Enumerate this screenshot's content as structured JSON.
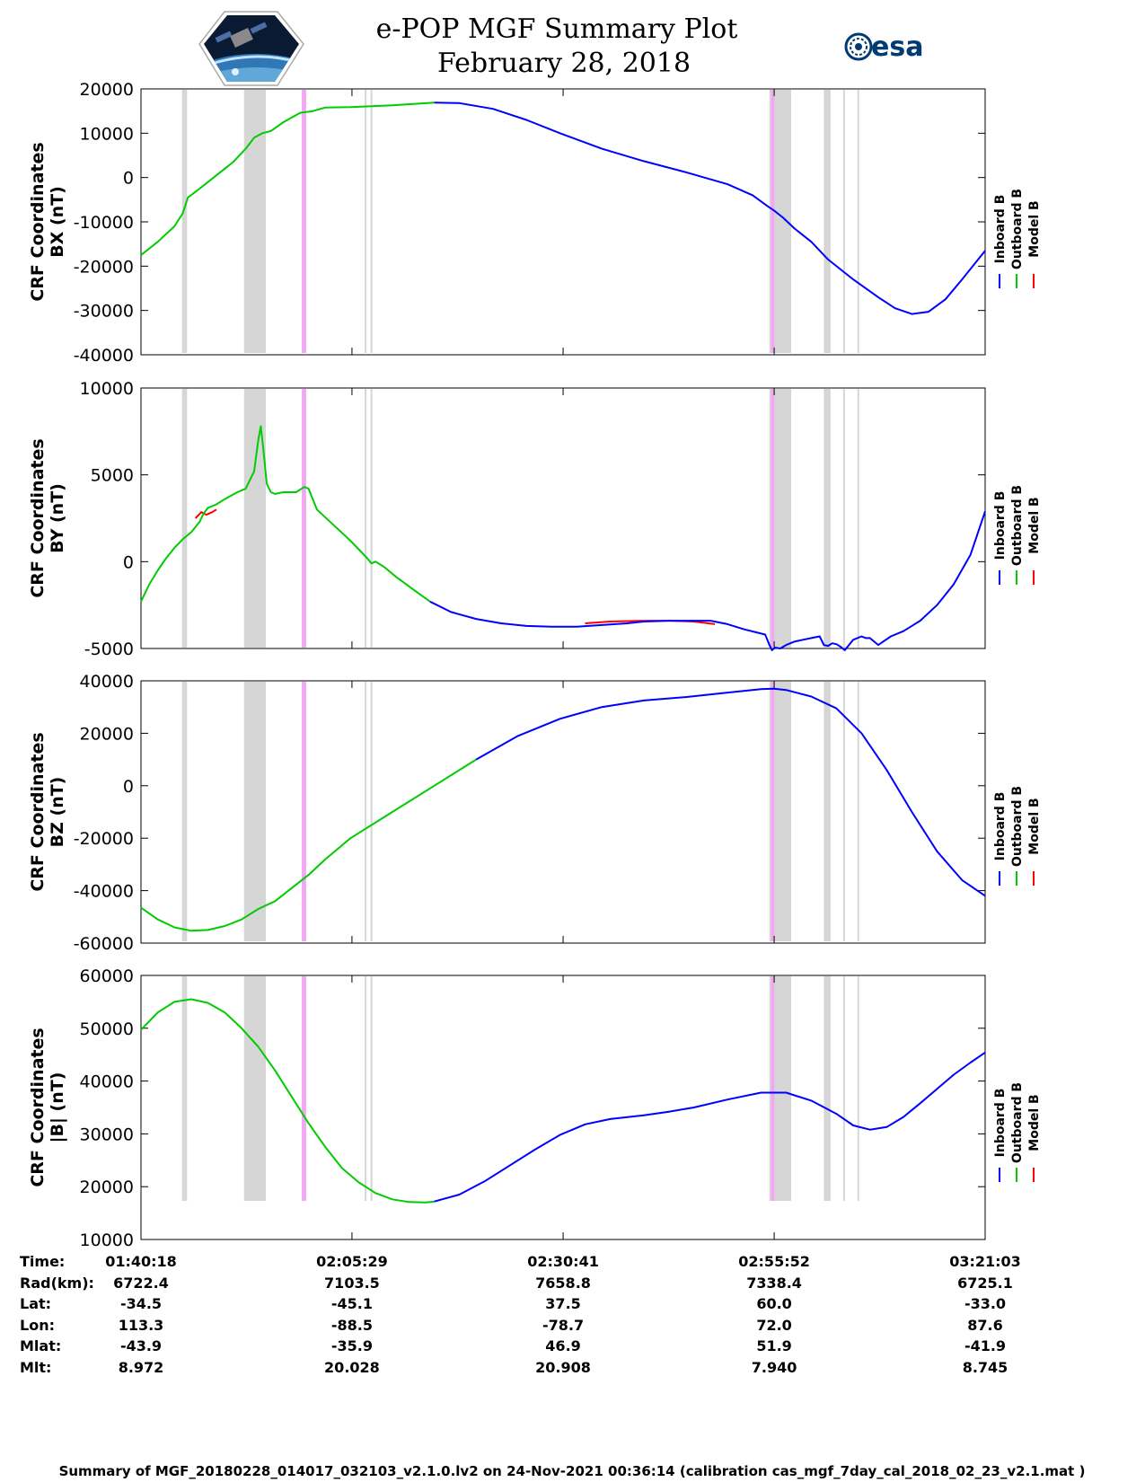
{
  "header": {
    "title": "e-POP MGF Summary Plot",
    "date": "February 28, 2018",
    "esa_text": "esa"
  },
  "legend": {
    "labels": [
      "Inboard B",
      "Outboard B",
      "Model B"
    ],
    "colors": [
      "#0000ff",
      "#00cc00",
      "#ff0000"
    ]
  },
  "ephemeris": {
    "row_labels": [
      "Time:",
      "Rad(km):",
      "Lat:",
      "Lon:",
      "Mlat:",
      "Mlt:"
    ],
    "columns": [
      {
        "Time": "01:40:18",
        "Rad": "6722.4",
        "Lat": "-34.5",
        "Lon": "113.3",
        "Mlat": "-43.9",
        "Mlt": "8.972"
      },
      {
        "Time": "02:05:29",
        "Rad": "7103.5",
        "Lat": "-45.1",
        "Lon": "-88.5",
        "Mlat": "-35.9",
        "Mlt": "20.028"
      },
      {
        "Time": "02:30:41",
        "Rad": "7658.8",
        "Lat": "37.5",
        "Lon": "-78.7",
        "Mlat": "46.9",
        "Mlt": "20.908"
      },
      {
        "Time": "02:55:52",
        "Rad": "7338.4",
        "Lat": "60.0",
        "Lon": "72.0",
        "Mlat": "51.9",
        "Mlt": "7.940"
      },
      {
        "Time": "03:21:03",
        "Rad": "6725.1",
        "Lat": "-33.0",
        "Lon": "87.6",
        "Mlat": "-41.9",
        "Mlt": "8.745"
      }
    ]
  },
  "footer": "Summary of MGF_20180228_014017_032103_v2.1.0.lv2 on 24-Nov-2021 00:36:14 (calibration cas_mgf_7day_cal_2018_02_23_v2.1.mat )",
  "chart_data": {
    "type": "line",
    "x_unit": "minutes since 01:40:18",
    "xlim": [
      0,
      100.75
    ],
    "x_ticks": [
      0,
      25.18,
      50.38,
      75.57,
      100.75
    ],
    "x_tick_labels": [
      "01:40:18",
      "02:05:29",
      "02:30:41",
      "02:55:52",
      "03:21:03"
    ],
    "gray_bands": [
      [
        4.9,
        5.5
      ],
      [
        12.3,
        14.9
      ],
      [
        19.2,
        19.7
      ],
      [
        26.7,
        26.9
      ],
      [
        27.4,
        27.6
      ],
      [
        75.0,
        77.6
      ],
      [
        81.5,
        82.3
      ],
      [
        83.8,
        84.0
      ],
      [
        85.5,
        85.7
      ]
    ],
    "violet_bands": [
      [
        19.2,
        19.7
      ],
      [
        75.2,
        75.6
      ]
    ],
    "panels": [
      {
        "ylabel": [
          "CRF Coordinates",
          "BX (nT)"
        ],
        "ylim": [
          -40000,
          20000
        ],
        "yticks": [
          -40000,
          -30000,
          -20000,
          -10000,
          0,
          10000,
          20000
        ],
        "series": [
          {
            "name": "Outboard B",
            "color": "#00cc00",
            "x": [
              0,
              2,
              4,
              5,
              5.6,
              7,
              9,
              11,
              12.5,
              13.5,
              14.5,
              15.5,
              17,
              19,
              20.5,
              22,
              25,
              30,
              35
            ],
            "y": [
              -17500,
              -14500,
              -11000,
              -8000,
              -4500,
              -2500,
              500,
              3500,
              6500,
              9000,
              10000,
              10500,
              12500,
              14600,
              15000,
              15800,
              15900,
              16300,
              16900
            ]
          },
          {
            "name": "Inboard B",
            "color": "#0000ff",
            "x": [
              35,
              38,
              42,
              46,
              50,
              55,
              60,
              65,
              70,
              73,
              74.8,
              75.6,
              76.6,
              78,
              80,
              82,
              85,
              88,
              90,
              92,
              94,
              96,
              98,
              100.75
            ],
            "y": [
              16900,
              16800,
              15500,
              13000,
              10000,
              6500,
              3700,
              1200,
              -1500,
              -4000,
              -6500,
              -7500,
              -9000,
              -11500,
              -14500,
              -18500,
              -23000,
              -27000,
              -29500,
              -30800,
              -30300,
              -27500,
              -23000,
              -16500
            ]
          }
        ]
      },
      {
        "ylabel": [
          "CRF Coordinates",
          "BY (nT)"
        ],
        "ylim": [
          -5000,
          10000
        ],
        "yticks": [
          -5000,
          0,
          5000,
          10000
        ],
        "series": [
          {
            "name": "Model B",
            "color": "#ff0000",
            "x": [
              6.5,
              7.2,
              7.8,
              8.5,
              9
            ],
            "y": [
              2500,
              2850,
              2700,
              2850,
              3000
            ]
          },
          {
            "name": "Model B",
            "color": "#ff0000",
            "x": [
              53,
              56,
              60,
              63,
              66,
              68.5
            ],
            "y": [
              -3550,
              -3450,
              -3400,
              -3400,
              -3450,
              -3600
            ]
          },
          {
            "name": "Outboard B",
            "color": "#00cc00",
            "x": [
              0,
              1,
              2,
              3,
              4,
              5,
              6,
              7,
              7.5,
              8,
              9,
              10,
              11.5,
              12.5,
              13.5,
              14,
              14.3,
              14.6,
              15,
              15.5,
              16,
              17,
              18.5,
              19.5,
              20,
              21,
              23,
              25,
              27,
              27.5,
              28,
              29,
              30.5,
              32.5,
              34.5
            ],
            "y": [
              -2300,
              -1300,
              -500,
              200,
              800,
              1300,
              1700,
              2300,
              2800,
              3100,
              3300,
              3600,
              4000,
              4200,
              5200,
              7000,
              7800,
              6500,
              4500,
              4000,
              3900,
              4000,
              4000,
              4300,
              4200,
              3000,
              2100,
              1200,
              200,
              -100,
              0,
              -300,
              -900,
              -1600,
              -2300
            ]
          },
          {
            "name": "Inboard B",
            "color": "#0000ff",
            "x": [
              34.5,
              37,
              40,
              43,
              46,
              49,
              52,
              55,
              58,
              60,
              63,
              65,
              68,
              70,
              72,
              74.5,
              75,
              75.3,
              75.7,
              76.3,
              77,
              78,
              79,
              80,
              81,
              81.5,
              82,
              82.5,
              83,
              83.5,
              84,
              85,
              86,
              86.5,
              87,
              88,
              89.5,
              91,
              93,
              95,
              97,
              99,
              100.75
            ],
            "y": [
              -2300,
              -2900,
              -3300,
              -3550,
              -3700,
              -3750,
              -3750,
              -3650,
              -3550,
              -3450,
              -3400,
              -3400,
              -3400,
              -3600,
              -3900,
              -4200,
              -4800,
              -5100,
              -4950,
              -5000,
              -4800,
              -4600,
              -4500,
              -4400,
              -4300,
              -4800,
              -4850,
              -4700,
              -4750,
              -4900,
              -5100,
              -4500,
              -4300,
              -4400,
              -4400,
              -4800,
              -4300,
              -4000,
              -3400,
              -2500,
              -1300,
              400,
              2900
            ]
          }
        ]
      },
      {
        "ylabel": [
          "CRF Coordinates",
          "BZ (nT)"
        ],
        "ylim": [
          -60000,
          40000
        ],
        "yticks": [
          -60000,
          -40000,
          -20000,
          0,
          20000,
          40000
        ],
        "series": [
          {
            "name": "Outboard B",
            "color": "#00cc00",
            "x": [
              0,
              2,
              4,
              6,
              8,
              10,
              12,
              14,
              16,
              18,
              20,
              22,
              25,
              30,
              35,
              40
            ],
            "y": [
              -46500,
              -51000,
              -54000,
              -55300,
              -55000,
              -53500,
              -51000,
              -47000,
              -44000,
              -39000,
              -34000,
              -28000,
              -20000,
              -10000,
              0,
              10000
            ]
          },
          {
            "name": "Inboard B",
            "color": "#0000ff",
            "x": [
              40,
              45,
              50,
              55,
              60,
              65,
              70,
              74,
              75.5,
              77,
              80,
              83,
              86,
              89,
              92,
              95,
              98,
              100.75
            ],
            "y": [
              10000,
              19000,
              25500,
              30000,
              32500,
              33800,
              35500,
              36800,
              37000,
              36500,
              34000,
              29500,
              20000,
              6000,
              -10000,
              -25000,
              -36000,
              -42000
            ]
          }
        ]
      },
      {
        "ylabel": [
          "CRF Coordinates",
          "|B| (nT)"
        ],
        "ylim": [
          10000,
          60000
        ],
        "yticks": [
          10000,
          20000,
          30000,
          40000,
          50000,
          60000
        ],
        "series": [
          {
            "name": "Outboard B",
            "color": "#00cc00",
            "x": [
              0,
              2,
              4,
              6,
              8,
              10,
              12,
              14,
              16,
              18,
              20,
              22,
              24,
              26,
              28,
              30,
              32,
              34,
              35
            ],
            "y": [
              49700,
              53000,
              55000,
              55500,
              54800,
              53000,
              50000,
              46500,
              42000,
              37000,
              32000,
              27500,
              23500,
              20800,
              18800,
              17600,
              17100,
              17000,
              17200
            ]
          },
          {
            "name": "Inboard B",
            "color": "#0000ff",
            "x": [
              35,
              38,
              41,
              44,
              47,
              50,
              53,
              56,
              60,
              63,
              66,
              70,
              74,
              77,
              80,
              83,
              85,
              87,
              89,
              91,
              93,
              95,
              97,
              99,
              100.75
            ],
            "y": [
              17200,
              18500,
              21000,
              24000,
              27000,
              29800,
              31800,
              32800,
              33500,
              34200,
              35000,
              36500,
              37800,
              37800,
              36300,
              33800,
              31600,
              30800,
              31300,
              33200,
              35800,
              38500,
              41200,
              43500,
              45400
            ]
          }
        ]
      }
    ]
  }
}
